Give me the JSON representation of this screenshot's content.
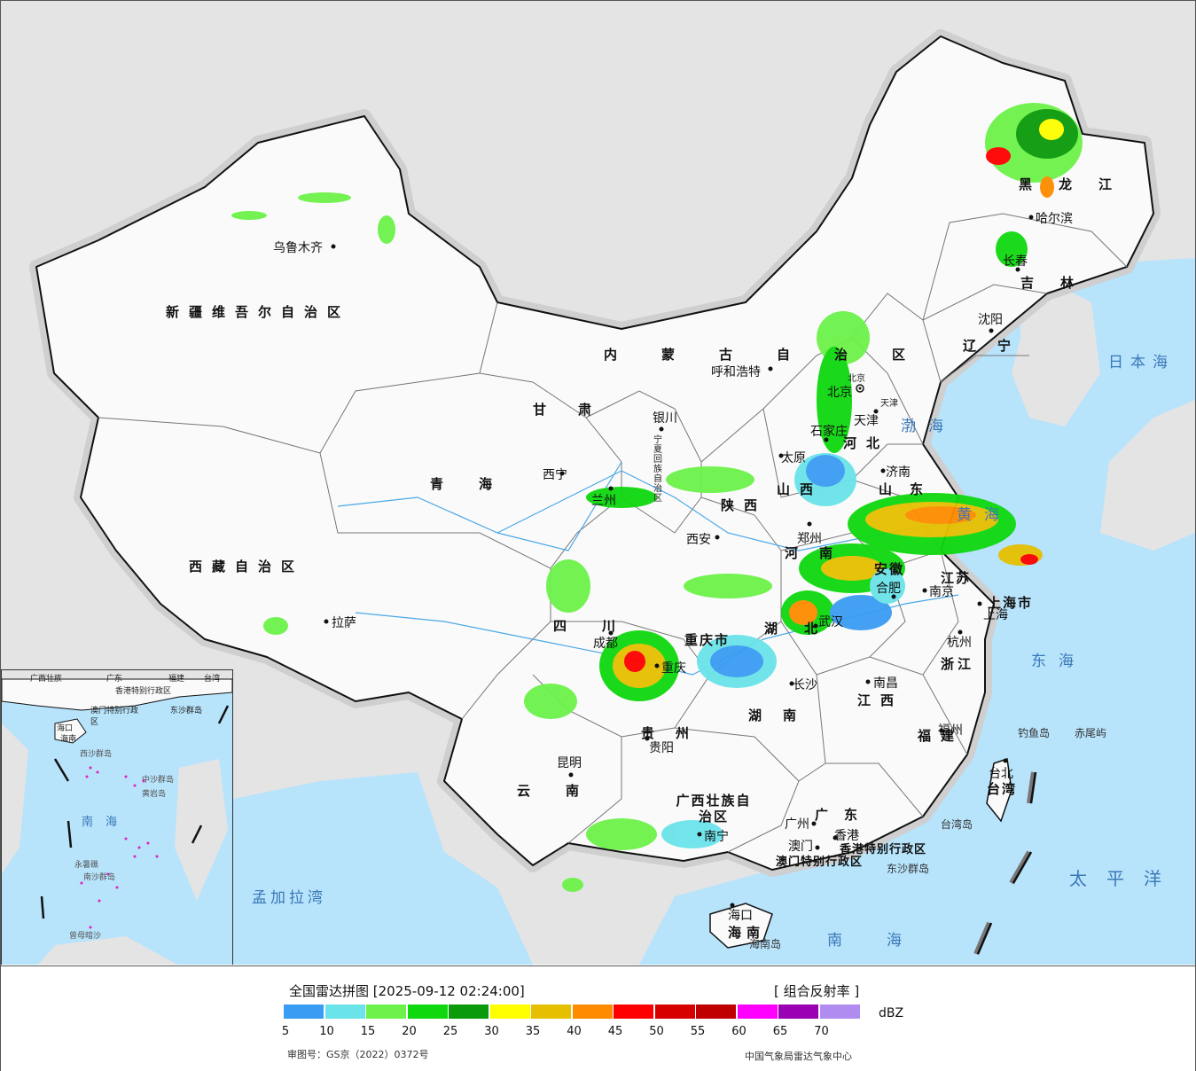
{
  "provinces": [
    "新疆维吾尔自治区",
    "西藏自治区",
    "青海",
    "甘肃",
    "内蒙古自治区",
    "黑龙江",
    "吉林",
    "辽宁",
    "河北",
    "山西",
    "陕西",
    "四川",
    "重庆市",
    "贵州",
    "云南",
    "广西壮族自治区",
    "广东",
    "湖南",
    "湖北",
    "河南",
    "山东",
    "江苏",
    "安徽",
    "浙江",
    "江西",
    "福建",
    "台湾",
    "海南",
    "上海市",
    "宁夏回族自治区",
    "北京",
    "天津",
    "香港特别行政区",
    "澳门特别行政区"
  ],
  "cities": [
    "乌鲁木齐",
    "拉萨",
    "西宁",
    "兰州",
    "银川",
    "呼和浩特",
    "北京",
    "天津",
    "石家庄",
    "太原",
    "济南",
    "郑州",
    "西安",
    "成都",
    "重庆",
    "贵阳",
    "昆明",
    "南宁",
    "广州",
    "香港",
    "澳门",
    "长沙",
    "武汉",
    "南昌",
    "合肥",
    "南京",
    "上海",
    "杭州",
    "福州",
    "台北",
    "哈尔滨",
    "长春",
    "沈阳",
    "海口"
  ],
  "seas": [
    "日本海",
    "渤海",
    "黄海",
    "东海",
    "太平洋",
    "南海",
    "孟加拉湾"
  ],
  "islands": [
    "钓鱼岛",
    "赤尾屿",
    "台湾岛",
    "东沙群岛",
    "海南岛"
  ],
  "inset": {
    "labels": [
      "广西壮族",
      "广东",
      "福建",
      "台湾",
      "香港特别行政区",
      "澳门特别行政区",
      "东沙群岛",
      "海口",
      "海南",
      "西沙群岛",
      "中沙群岛",
      "南海",
      "南沙群岛",
      "曾母暗沙",
      "永暑礁",
      "黄岩岛"
    ]
  },
  "legend": {
    "title": "全国雷达拼图 [2025-09-12 02:24:00]",
    "product": "[ 组合反射率 ]",
    "unit": "dBZ",
    "ticks": [
      "5",
      "10",
      "15",
      "20",
      "25",
      "30",
      "35",
      "40",
      "45",
      "50",
      "55",
      "60",
      "65",
      "70"
    ],
    "colors": [
      "#3a9cf2",
      "#6ae3ea",
      "#6cf24a",
      "#0fd80f",
      "#0a9a0a",
      "#ffff00",
      "#e6c000",
      "#ff8c00",
      "#ff0000",
      "#d60000",
      "#c00000",
      "#ff00ff",
      "#9a00b4",
      "#b08cf0"
    ],
    "review_no": "审图号：GS京（2022）0372号",
    "source": "中国气象局雷达气象中心"
  },
  "colors": {
    "ocean": "#b7e3fb",
    "land": "#ffffff",
    "outside": "#e4e4e4"
  }
}
